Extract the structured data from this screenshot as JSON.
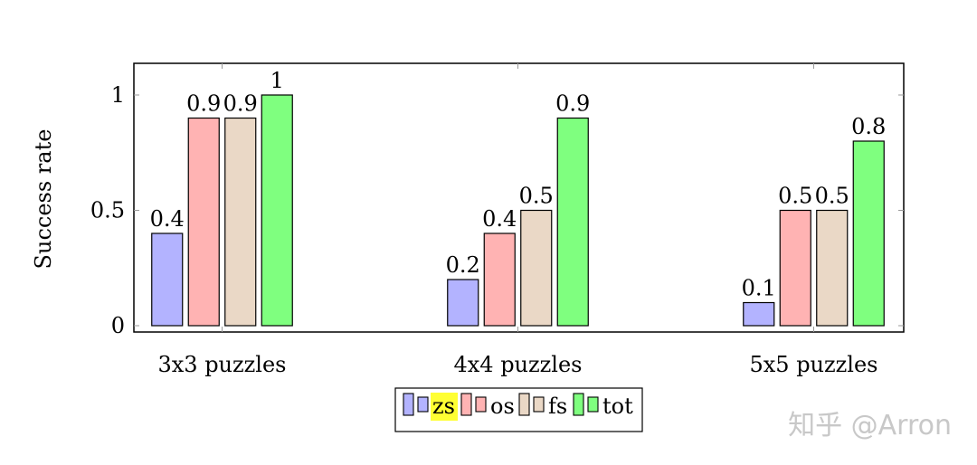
{
  "chart_data": {
    "type": "bar",
    "title": "",
    "xlabel": "",
    "ylabel": "Success rate",
    "ylim": [
      0,
      1.15
    ],
    "yticks": [
      0,
      0.5,
      1
    ],
    "ytick_labels": [
      "0",
      "0.5",
      "1"
    ],
    "categories": [
      "3x3 puzzles",
      "4x4 puzzles",
      "5x5 puzzles"
    ],
    "series": [
      {
        "name": "zs",
        "color": "#b3b3ff",
        "values": [
          0.4,
          0.2,
          0.1
        ],
        "labels": [
          "0.4",
          "0.2",
          "0.1"
        ]
      },
      {
        "name": "os",
        "color": "#ffb3b3",
        "values": [
          0.9,
          0.4,
          0.5
        ],
        "labels": [
          "0.9",
          "0.4",
          "0.5"
        ]
      },
      {
        "name": "fs",
        "color": "#ead8c6",
        "values": [
          0.9,
          0.5,
          0.5
        ],
        "labels": [
          "0.9",
          "0.5",
          "0.5"
        ]
      },
      {
        "name": "tot",
        "color": "#7fff7f",
        "values": [
          1,
          0.9,
          0.8
        ],
        "labels": [
          "1",
          "0.9",
          "0.8"
        ]
      }
    ],
    "legend": {
      "position": "bottom-center",
      "highlight_color": "#ffff33",
      "highlighted_entry": "zs"
    },
    "grid": false
  },
  "watermark": {
    "text": "知乎 @Arron",
    "color": "#c8c8c8"
  }
}
